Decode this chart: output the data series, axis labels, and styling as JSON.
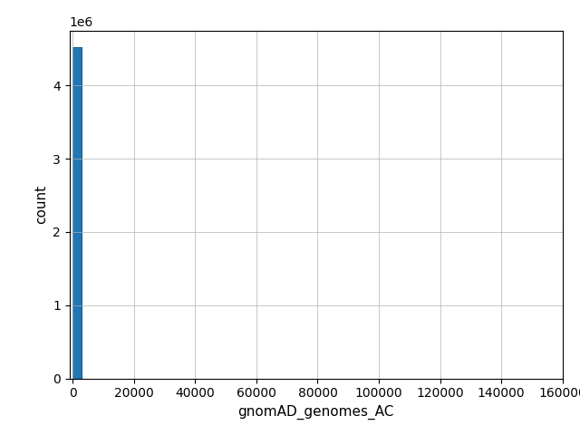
{
  "xlabel": "gnomAD_genomes_AC",
  "ylabel": "count",
  "xlim": [
    -1000,
    160000
  ],
  "ylim": [
    0,
    4750000
  ],
  "yticks": [
    0,
    1000000,
    2000000,
    3000000,
    4000000
  ],
  "xticks": [
    0,
    20000,
    40000,
    60000,
    80000,
    100000,
    120000,
    140000,
    160000
  ],
  "bar_color": "#1f77b4",
  "bar_edge_color": "#1a6598",
  "first_bar_height": 4520000,
  "first_bar_x": 0,
  "first_bar_width": 3000,
  "grid_color": "#b0b0b0",
  "bg_color": "#ffffff",
  "figsize": [
    6.4,
    4.8
  ],
  "dpi": 100
}
